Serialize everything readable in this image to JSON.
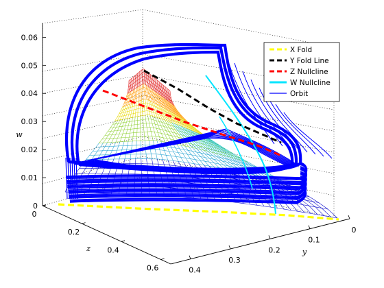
{
  "chart_data": {
    "type": "3d-line",
    "title": "",
    "xlabel": "y",
    "ylabel": "z",
    "zlabel": "w",
    "xlim": [
      0,
      0.4
    ],
    "ylim": [
      0,
      0.6
    ],
    "zlim": [
      0,
      0.065
    ],
    "x_ticks": [
      "0",
      "0.1",
      "0.2",
      "0.3",
      "0.4"
    ],
    "y_ticks": [
      "0",
      "0.2",
      "0.4",
      "0.6"
    ],
    "z_ticks": [
      "0",
      "0.01",
      "0.02",
      "0.03",
      "0.04",
      "0.05",
      "0.06"
    ],
    "grid": true,
    "legend_position": "top-right",
    "colors": {
      "x_fold": "#ffff00",
      "y_fold": "#000000",
      "z_nullcline": "#ff0000",
      "w_nullcline": "#00e5ff",
      "orbit": "#0000ff"
    },
    "series": [
      {
        "name": "X Fold",
        "style": "dashed",
        "points": [
          [
            0,
            0,
            0
          ],
          [
            0.4,
            0.6,
            0
          ]
        ]
      },
      {
        "name": "Y Fold Line",
        "style": "dashed",
        "points": [
          [
            0.22,
            0.22,
            0.06
          ],
          [
            0.16,
            0.44,
            0.05
          ],
          [
            0.11,
            0.58,
            0.04
          ]
        ]
      },
      {
        "name": "Z Nullcline",
        "style": "dashed",
        "points": [
          [
            0.38,
            0.18,
            0.05
          ],
          [
            0.22,
            0.38,
            0.04
          ],
          [
            0.1,
            0.55,
            0.03
          ]
        ]
      },
      {
        "name": "W Nullcline",
        "style": "solid",
        "points": [
          [
            0.3,
            0.25,
            0.045
          ],
          [
            0.2,
            0.45,
            0.02
          ],
          [
            0.14,
            0.55,
            0
          ]
        ]
      },
      {
        "name": "Orbit",
        "style": "solid",
        "points": [
          [
            0.4,
            0.1,
            0.01
          ],
          [
            0.35,
            0.05,
            0.06
          ],
          [
            0.1,
            0.1,
            0.062
          ],
          [
            0.02,
            0.58,
            0.01
          ]
        ]
      }
    ]
  }
}
